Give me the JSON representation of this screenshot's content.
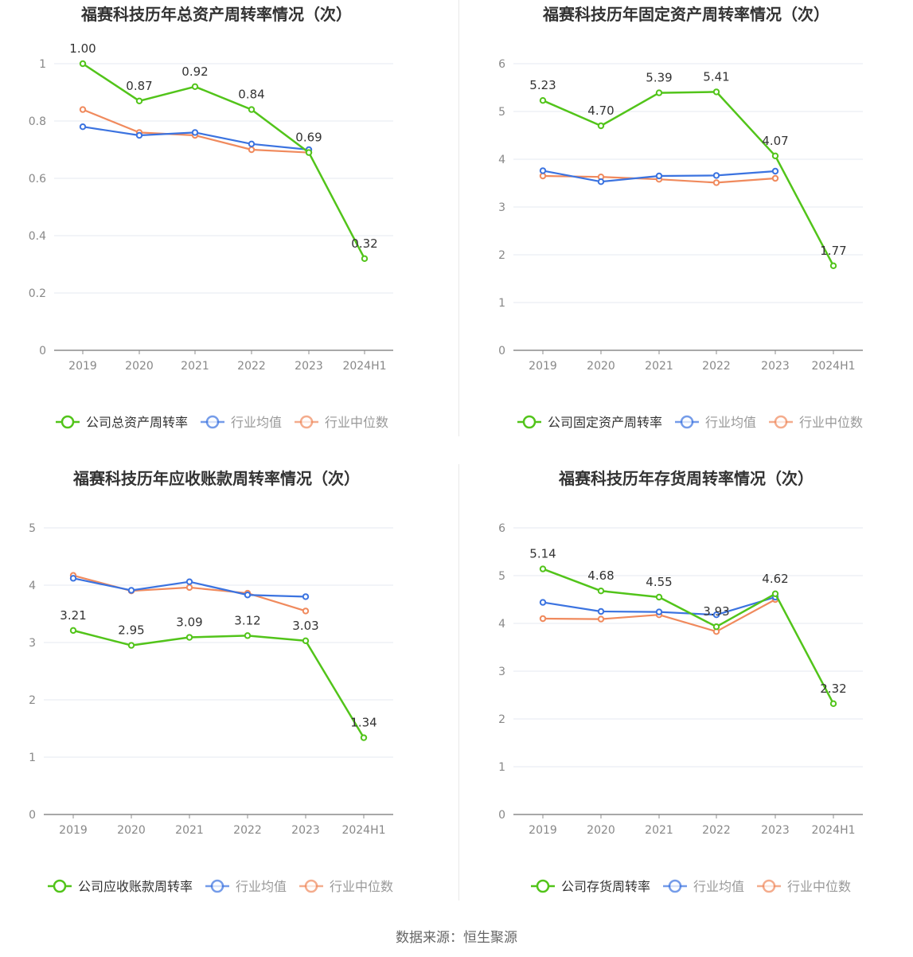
{
  "colors": {
    "company": "#52c41a",
    "avg": "#3b73e0",
    "median": "#f08a5d"
  },
  "source": "数据来源：恒生聚源",
  "chart_data": [
    {
      "type": "line",
      "title": "福赛科技历年总资产周转率情况（次）",
      "categories": [
        "2019",
        "2020",
        "2021",
        "2022",
        "2023",
        "2024H1"
      ],
      "ylim": [
        0,
        1
      ],
      "yticks": [
        "0",
        "0.2",
        "0.4",
        "0.6",
        "0.8",
        "1"
      ],
      "ytick_values": [
        0,
        0.2,
        0.4,
        0.6,
        0.8,
        1
      ],
      "grid": true,
      "legend_position": "bottom",
      "series": [
        {
          "name": "公司总资产周转率",
          "role": "company",
          "values": [
            1.0,
            0.87,
            0.92,
            0.84,
            0.69,
            0.32
          ],
          "labels": [
            "1.00",
            "0.87",
            "0.92",
            "0.84",
            "0.69",
            "0.32"
          ]
        },
        {
          "name": "行业均值",
          "role": "avg",
          "values": [
            0.78,
            0.75,
            0.76,
            0.72,
            0.7,
            null
          ]
        },
        {
          "name": "行业中位数",
          "role": "median",
          "values": [
            0.84,
            0.76,
            0.75,
            0.7,
            0.69,
            null
          ]
        }
      ]
    },
    {
      "type": "line",
      "title": "福赛科技历年固定资产周转率情况（次）",
      "categories": [
        "2019",
        "2020",
        "2021",
        "2022",
        "2023",
        "2024H1"
      ],
      "ylim": [
        0,
        6
      ],
      "yticks": [
        "0",
        "1",
        "2",
        "3",
        "4",
        "5",
        "6"
      ],
      "ytick_values": [
        0,
        1,
        2,
        3,
        4,
        5,
        6
      ],
      "grid": true,
      "legend_position": "bottom",
      "series": [
        {
          "name": "公司固定资产周转率",
          "role": "company",
          "values": [
            5.23,
            4.7,
            5.39,
            5.41,
            4.07,
            1.77
          ],
          "labels": [
            "5.23",
            "4.70",
            "5.39",
            "5.41",
            "4.07",
            "1.77"
          ]
        },
        {
          "name": "行业均值",
          "role": "avg",
          "values": [
            3.76,
            3.53,
            3.65,
            3.66,
            3.75,
            null
          ]
        },
        {
          "name": "行业中位数",
          "role": "median",
          "values": [
            3.65,
            3.63,
            3.58,
            3.51,
            3.6,
            null
          ]
        }
      ]
    },
    {
      "type": "line",
      "title": "福赛科技历年应收账款周转率情况（次）",
      "categories": [
        "2019",
        "2020",
        "2021",
        "2022",
        "2023",
        "2024H1"
      ],
      "ylim": [
        0,
        5
      ],
      "yticks": [
        "0",
        "1",
        "2",
        "3",
        "4",
        "5"
      ],
      "ytick_values": [
        0,
        1,
        2,
        3,
        4,
        5
      ],
      "grid": true,
      "legend_position": "bottom",
      "series": [
        {
          "name": "公司应收账款周转率",
          "role": "company",
          "values": [
            3.21,
            2.95,
            3.09,
            3.12,
            3.03,
            1.34
          ],
          "labels": [
            "3.21",
            "2.95",
            "3.09",
            "3.12",
            "3.03",
            "1.34"
          ]
        },
        {
          "name": "行业均值",
          "role": "avg",
          "values": [
            4.12,
            3.91,
            4.06,
            3.83,
            3.8,
            null
          ]
        },
        {
          "name": "行业中位数",
          "role": "median",
          "values": [
            4.17,
            3.9,
            3.96,
            3.86,
            3.55,
            null
          ]
        }
      ]
    },
    {
      "type": "line",
      "title": "福赛科技历年存货周转率情况（次）",
      "categories": [
        "2019",
        "2020",
        "2021",
        "2022",
        "2023",
        "2024H1"
      ],
      "ylim": [
        0,
        6
      ],
      "yticks": [
        "0",
        "1",
        "2",
        "3",
        "4",
        "5",
        "6"
      ],
      "ytick_values": [
        0,
        1,
        2,
        3,
        4,
        5,
        6
      ],
      "grid": true,
      "legend_position": "bottom",
      "series": [
        {
          "name": "公司存货周转率",
          "role": "company",
          "values": [
            5.14,
            4.68,
            4.55,
            3.93,
            4.62,
            2.32
          ],
          "labels": [
            "5.14",
            "4.68",
            "4.55",
            "3.93",
            "4.62",
            "2.32"
          ]
        },
        {
          "name": "行业均值",
          "role": "avg",
          "values": [
            4.44,
            4.25,
            4.24,
            4.18,
            4.55,
            null
          ]
        },
        {
          "name": "行业中位数",
          "role": "median",
          "values": [
            4.1,
            4.09,
            4.18,
            3.83,
            4.5,
            null
          ]
        }
      ]
    }
  ]
}
